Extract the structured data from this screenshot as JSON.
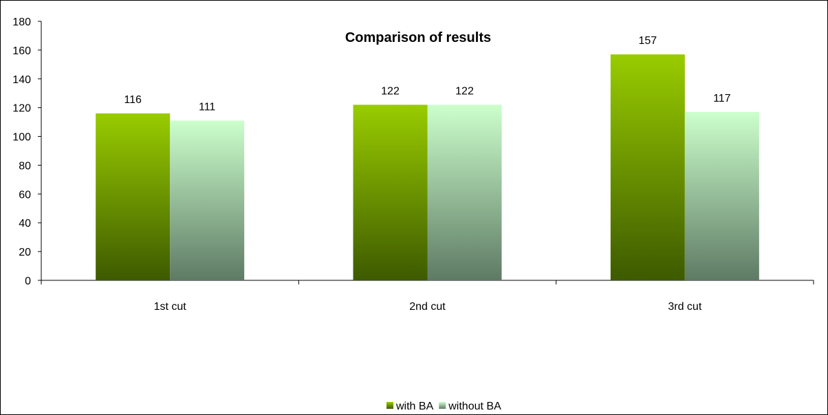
{
  "chart_data": {
    "type": "bar",
    "title": "Comparison of results",
    "xlabel": "",
    "ylabel": "",
    "categories": [
      "1st cut",
      "2nd cut",
      "3rd cut"
    ],
    "series": [
      {
        "name": "with BA",
        "values": [
          116,
          122,
          157
        ],
        "color_top": "#99cc00",
        "color_bottom": "#3d5a00"
      },
      {
        "name": "without BA",
        "values": [
          111,
          122,
          117
        ],
        "color_top": "#ccffcc",
        "color_bottom": "#5e7a64"
      }
    ],
    "ylim": [
      0,
      180
    ],
    "yticks": [
      0,
      20,
      40,
      60,
      80,
      100,
      120,
      140,
      160,
      180
    ],
    "grid": false,
    "legend_position": "bottom",
    "data_labels": true
  }
}
